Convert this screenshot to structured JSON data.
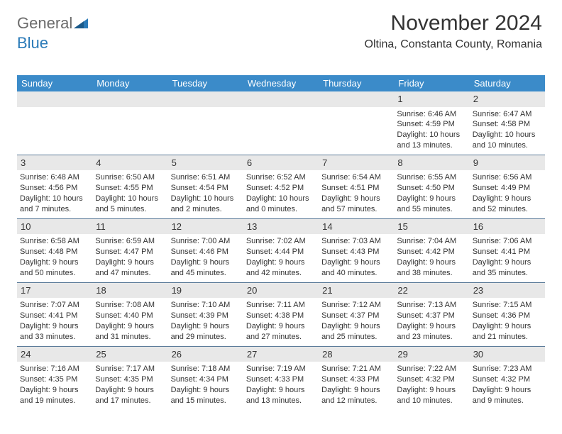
{
  "brand": {
    "part1": "General",
    "part2": "Blue"
  },
  "title": "November 2024",
  "location": "Oltina, Constanta County, Romania",
  "colors": {
    "header_bg": "#3b8bc9",
    "daynum_bg": "#e8e8e8",
    "border": "#5a7a99",
    "text": "#333333",
    "brand_gray": "#6b6b6b",
    "brand_blue": "#2a7ab8"
  },
  "dayNames": [
    "Sunday",
    "Monday",
    "Tuesday",
    "Wednesday",
    "Thursday",
    "Friday",
    "Saturday"
  ],
  "weeks": [
    [
      {
        "n": "",
        "sr": "",
        "ss": "",
        "dl": ""
      },
      {
        "n": "",
        "sr": "",
        "ss": "",
        "dl": ""
      },
      {
        "n": "",
        "sr": "",
        "ss": "",
        "dl": ""
      },
      {
        "n": "",
        "sr": "",
        "ss": "",
        "dl": ""
      },
      {
        "n": "",
        "sr": "",
        "ss": "",
        "dl": ""
      },
      {
        "n": "1",
        "sr": "Sunrise: 6:46 AM",
        "ss": "Sunset: 4:59 PM",
        "dl": "Daylight: 10 hours and 13 minutes."
      },
      {
        "n": "2",
        "sr": "Sunrise: 6:47 AM",
        "ss": "Sunset: 4:58 PM",
        "dl": "Daylight: 10 hours and 10 minutes."
      }
    ],
    [
      {
        "n": "3",
        "sr": "Sunrise: 6:48 AM",
        "ss": "Sunset: 4:56 PM",
        "dl": "Daylight: 10 hours and 7 minutes."
      },
      {
        "n": "4",
        "sr": "Sunrise: 6:50 AM",
        "ss": "Sunset: 4:55 PM",
        "dl": "Daylight: 10 hours and 5 minutes."
      },
      {
        "n": "5",
        "sr": "Sunrise: 6:51 AM",
        "ss": "Sunset: 4:54 PM",
        "dl": "Daylight: 10 hours and 2 minutes."
      },
      {
        "n": "6",
        "sr": "Sunrise: 6:52 AM",
        "ss": "Sunset: 4:52 PM",
        "dl": "Daylight: 10 hours and 0 minutes."
      },
      {
        "n": "7",
        "sr": "Sunrise: 6:54 AM",
        "ss": "Sunset: 4:51 PM",
        "dl": "Daylight: 9 hours and 57 minutes."
      },
      {
        "n": "8",
        "sr": "Sunrise: 6:55 AM",
        "ss": "Sunset: 4:50 PM",
        "dl": "Daylight: 9 hours and 55 minutes."
      },
      {
        "n": "9",
        "sr": "Sunrise: 6:56 AM",
        "ss": "Sunset: 4:49 PM",
        "dl": "Daylight: 9 hours and 52 minutes."
      }
    ],
    [
      {
        "n": "10",
        "sr": "Sunrise: 6:58 AM",
        "ss": "Sunset: 4:48 PM",
        "dl": "Daylight: 9 hours and 50 minutes."
      },
      {
        "n": "11",
        "sr": "Sunrise: 6:59 AM",
        "ss": "Sunset: 4:47 PM",
        "dl": "Daylight: 9 hours and 47 minutes."
      },
      {
        "n": "12",
        "sr": "Sunrise: 7:00 AM",
        "ss": "Sunset: 4:46 PM",
        "dl": "Daylight: 9 hours and 45 minutes."
      },
      {
        "n": "13",
        "sr": "Sunrise: 7:02 AM",
        "ss": "Sunset: 4:44 PM",
        "dl": "Daylight: 9 hours and 42 minutes."
      },
      {
        "n": "14",
        "sr": "Sunrise: 7:03 AM",
        "ss": "Sunset: 4:43 PM",
        "dl": "Daylight: 9 hours and 40 minutes."
      },
      {
        "n": "15",
        "sr": "Sunrise: 7:04 AM",
        "ss": "Sunset: 4:42 PM",
        "dl": "Daylight: 9 hours and 38 minutes."
      },
      {
        "n": "16",
        "sr": "Sunrise: 7:06 AM",
        "ss": "Sunset: 4:41 PM",
        "dl": "Daylight: 9 hours and 35 minutes."
      }
    ],
    [
      {
        "n": "17",
        "sr": "Sunrise: 7:07 AM",
        "ss": "Sunset: 4:41 PM",
        "dl": "Daylight: 9 hours and 33 minutes."
      },
      {
        "n": "18",
        "sr": "Sunrise: 7:08 AM",
        "ss": "Sunset: 4:40 PM",
        "dl": "Daylight: 9 hours and 31 minutes."
      },
      {
        "n": "19",
        "sr": "Sunrise: 7:10 AM",
        "ss": "Sunset: 4:39 PM",
        "dl": "Daylight: 9 hours and 29 minutes."
      },
      {
        "n": "20",
        "sr": "Sunrise: 7:11 AM",
        "ss": "Sunset: 4:38 PM",
        "dl": "Daylight: 9 hours and 27 minutes."
      },
      {
        "n": "21",
        "sr": "Sunrise: 7:12 AM",
        "ss": "Sunset: 4:37 PM",
        "dl": "Daylight: 9 hours and 25 minutes."
      },
      {
        "n": "22",
        "sr": "Sunrise: 7:13 AM",
        "ss": "Sunset: 4:37 PM",
        "dl": "Daylight: 9 hours and 23 minutes."
      },
      {
        "n": "23",
        "sr": "Sunrise: 7:15 AM",
        "ss": "Sunset: 4:36 PM",
        "dl": "Daylight: 9 hours and 21 minutes."
      }
    ],
    [
      {
        "n": "24",
        "sr": "Sunrise: 7:16 AM",
        "ss": "Sunset: 4:35 PM",
        "dl": "Daylight: 9 hours and 19 minutes."
      },
      {
        "n": "25",
        "sr": "Sunrise: 7:17 AM",
        "ss": "Sunset: 4:35 PM",
        "dl": "Daylight: 9 hours and 17 minutes."
      },
      {
        "n": "26",
        "sr": "Sunrise: 7:18 AM",
        "ss": "Sunset: 4:34 PM",
        "dl": "Daylight: 9 hours and 15 minutes."
      },
      {
        "n": "27",
        "sr": "Sunrise: 7:19 AM",
        "ss": "Sunset: 4:33 PM",
        "dl": "Daylight: 9 hours and 13 minutes."
      },
      {
        "n": "28",
        "sr": "Sunrise: 7:21 AM",
        "ss": "Sunset: 4:33 PM",
        "dl": "Daylight: 9 hours and 12 minutes."
      },
      {
        "n": "29",
        "sr": "Sunrise: 7:22 AM",
        "ss": "Sunset: 4:32 PM",
        "dl": "Daylight: 9 hours and 10 minutes."
      },
      {
        "n": "30",
        "sr": "Sunrise: 7:23 AM",
        "ss": "Sunset: 4:32 PM",
        "dl": "Daylight: 9 hours and 9 minutes."
      }
    ]
  ]
}
